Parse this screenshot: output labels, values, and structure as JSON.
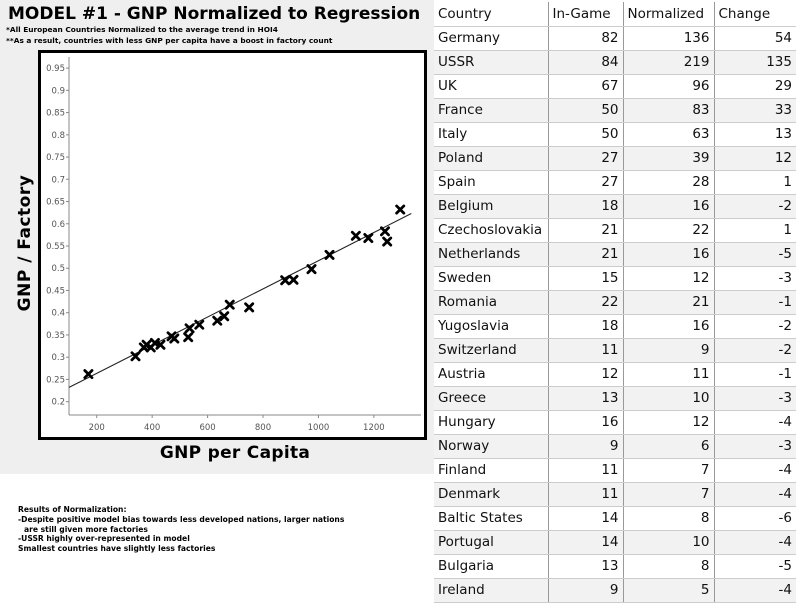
{
  "title": "MODEL #1 - GNP Normalized to Regression",
  "notes": [
    "*All European Countries Normalized to the average trend in HOI4",
    "**As a result, countries with less GNP per capita have a boost in factory count"
  ],
  "results": {
    "heading": "Results of Normalization:",
    "lines": [
      "-Despite positive model bias towards less developed nations, larger nations",
      "  are still given more factories",
      "-USSR highly over-represented in model",
      "Smallest countries have slightly less factories"
    ]
  },
  "chart_data": {
    "type": "scatter",
    "xlabel": "GNP per Capita",
    "ylabel": "GNP / Factory",
    "xlim": [
      100,
      1370
    ],
    "ylim": [
      0.17,
      0.975
    ],
    "x_ticks": [
      200,
      400,
      600,
      800,
      1000,
      1200
    ],
    "y_ticks": [
      0.2,
      0.25,
      0.3,
      0.35,
      0.4,
      0.45,
      0.5,
      0.55,
      0.6,
      0.65,
      0.7,
      0.75,
      0.8,
      0.85,
      0.9,
      0.95
    ],
    "grid": false,
    "marker": "x",
    "points": [
      {
        "x": 170,
        "y": 0.262
      },
      {
        "x": 340,
        "y": 0.302
      },
      {
        "x": 370,
        "y": 0.322
      },
      {
        "x": 380,
        "y": 0.328
      },
      {
        "x": 395,
        "y": 0.322
      },
      {
        "x": 410,
        "y": 0.332
      },
      {
        "x": 430,
        "y": 0.328
      },
      {
        "x": 470,
        "y": 0.347
      },
      {
        "x": 480,
        "y": 0.342
      },
      {
        "x": 530,
        "y": 0.345
      },
      {
        "x": 535,
        "y": 0.365
      },
      {
        "x": 570,
        "y": 0.373
      },
      {
        "x": 635,
        "y": 0.382
      },
      {
        "x": 660,
        "y": 0.392
      },
      {
        "x": 680,
        "y": 0.418
      },
      {
        "x": 750,
        "y": 0.412
      },
      {
        "x": 880,
        "y": 0.473
      },
      {
        "x": 910,
        "y": 0.474
      },
      {
        "x": 975,
        "y": 0.498
      },
      {
        "x": 1040,
        "y": 0.53
      },
      {
        "x": 1135,
        "y": 0.573
      },
      {
        "x": 1180,
        "y": 0.568
      },
      {
        "x": 1240,
        "y": 0.583
      },
      {
        "x": 1248,
        "y": 0.56
      },
      {
        "x": 1295,
        "y": 0.632
      }
    ],
    "trendline": {
      "x": [
        100,
        1335
      ],
      "y": [
        0.232,
        0.623
      ]
    }
  },
  "table": {
    "headers": [
      "Country",
      "In-Game",
      "Normalized",
      "Change"
    ],
    "rows": [
      [
        "Germany",
        "82",
        "136",
        "54"
      ],
      [
        "USSR",
        "84",
        "219",
        "135"
      ],
      [
        "UK",
        "67",
        "96",
        "29"
      ],
      [
        "France",
        "50",
        "83",
        "33"
      ],
      [
        "Italy",
        "50",
        "63",
        "13"
      ],
      [
        "Poland",
        "27",
        "39",
        "12"
      ],
      [
        "Spain",
        "27",
        "28",
        "1"
      ],
      [
        "Belgium",
        "18",
        "16",
        "-2"
      ],
      [
        "Czechoslovakia",
        "21",
        "22",
        "1"
      ],
      [
        "Netherlands",
        "21",
        "16",
        "-5"
      ],
      [
        "Sweden",
        "15",
        "12",
        "-3"
      ],
      [
        "Romania",
        "22",
        "21",
        "-1"
      ],
      [
        "Yugoslavia",
        "18",
        "16",
        "-2"
      ],
      [
        "Switzerland",
        "11",
        "9",
        "-2"
      ],
      [
        "Austria",
        "12",
        "11",
        "-1"
      ],
      [
        "Greece",
        "13",
        "10",
        "-3"
      ],
      [
        "Hungary",
        "16",
        "12",
        "-4"
      ],
      [
        "Norway",
        "9",
        "6",
        "-3"
      ],
      [
        "Finland",
        "11",
        "7",
        "-4"
      ],
      [
        "Denmark",
        "11",
        "7",
        "-4"
      ],
      [
        "Baltic States",
        "14",
        "8",
        "-6"
      ],
      [
        "Portugal",
        "14",
        "10",
        "-4"
      ],
      [
        "Bulgaria",
        "13",
        "8",
        "-5"
      ],
      [
        "Ireland",
        "9",
        "5",
        "-4"
      ]
    ]
  }
}
